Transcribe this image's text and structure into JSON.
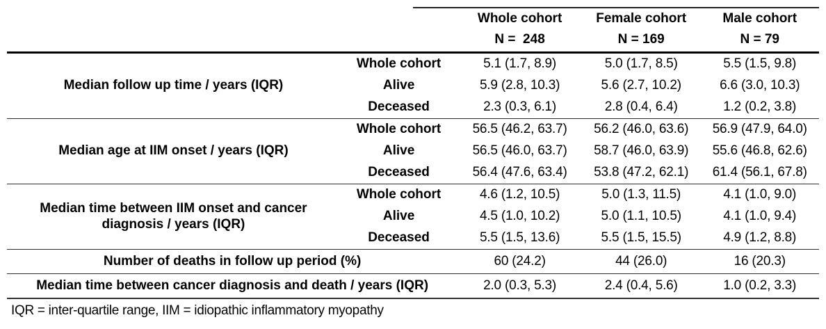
{
  "table": {
    "columns": [
      {
        "label": "Whole cohort",
        "n": "N =  248"
      },
      {
        "label": "Female cohort",
        "n": "N = 169"
      },
      {
        "label": "Male cohort",
        "n": "N = 79"
      }
    ],
    "groups": [
      {
        "label": "Median follow up time / years (IQR)",
        "rows": [
          {
            "sublabel": "Whole cohort",
            "values": [
              "5.1 (1.7, 8.9)",
              "5.0 (1.7, 8.5)",
              "5.5 (1.5, 9.8)"
            ]
          },
          {
            "sublabel": "Alive",
            "values": [
              "5.9 (2.8, 10.3)",
              "5.6 (2.7, 10.2)",
              "6.6 (3.0, 10.3)"
            ]
          },
          {
            "sublabel": "Deceased",
            "values": [
              "2.3 (0.3, 6.1)",
              "2.8 (0.4, 6.4)",
              "1.2 (0.2, 3.8)"
            ]
          }
        ]
      },
      {
        "label": "Median age at IIM onset / years (IQR)",
        "rows": [
          {
            "sublabel": "Whole cohort",
            "values": [
              "56.5 (46.2, 63.7)",
              "56.2 (46.0, 63.6)",
              "56.9 (47.9, 64.0)"
            ]
          },
          {
            "sublabel": "Alive",
            "values": [
              "56.5 (46.0, 63.7)",
              "58.7 (46.0, 63.9)",
              "55.6 (46.8, 62.6)"
            ]
          },
          {
            "sublabel": "Deceased",
            "values": [
              "56.4 (47.6, 63.4)",
              "53.8 (47.2, 62.1)",
              "61.4 (56.1, 67.8)"
            ]
          }
        ]
      },
      {
        "label": "Median time between IIM onset and cancer diagnosis / years (IQR)",
        "rows": [
          {
            "sublabel": "Whole cohort",
            "values": [
              "4.6 (1.2, 10.5)",
              "5.0 (1.3, 11.5)",
              "4.1 (1.0, 9.0)"
            ]
          },
          {
            "sublabel": "Alive",
            "values": [
              "4.5 (1.0, 10.2)",
              "5.0 (1.1, 10.5)",
              "4.1 (1.0, 9.4)"
            ]
          },
          {
            "sublabel": "Deceased",
            "values": [
              "5.5 (1.5, 13.6)",
              "5.5 (1.5, 15.5)",
              "4.9 (1.2, 8.8)"
            ]
          }
        ]
      }
    ],
    "summary_rows": [
      {
        "label": "Number of deaths in follow up period (%)",
        "values": [
          "60 (24.2)",
          "44 (26.0)",
          "16 (20.3)"
        ]
      },
      {
        "label": "Median time between cancer diagnosis and death / years (IQR)",
        "values": [
          "2.0 (0.3, 5.3)",
          "2.4 (0.4, 5.6)",
          "1.0 (0.2, 3.3)"
        ]
      }
    ],
    "footnote": "IQR = inter-quartile range, IIM = idiopathic inflammatory myopathy"
  }
}
